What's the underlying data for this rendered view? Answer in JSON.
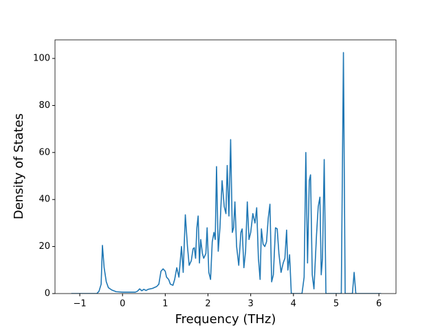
{
  "chart_data": {
    "type": "line",
    "xlabel": "Frequency (THz)",
    "ylabel": "Density of States",
    "xlim": [
      -1.58,
      6.4
    ],
    "ylim": [
      0,
      107.9
    ],
    "xticks": [
      {
        "value": -1,
        "label": "−1"
      },
      0,
      1,
      2,
      3,
      4,
      5,
      6
    ],
    "yticks": [
      0,
      20,
      40,
      60,
      80,
      100
    ],
    "x": [
      -1.2,
      -0.6,
      -0.55,
      -0.5,
      -0.47,
      -0.43,
      -0.38,
      -0.33,
      -0.25,
      -0.15,
      0,
      0.3,
      0.35,
      0.4,
      0.45,
      0.5,
      0.55,
      0.6,
      0.7,
      0.8,
      0.85,
      0.9,
      0.95,
      1.0,
      1.03,
      1.08,
      1.12,
      1.18,
      1.22,
      1.27,
      1.32,
      1.38,
      1.42,
      1.47,
      1.52,
      1.56,
      1.61,
      1.65,
      1.68,
      1.71,
      1.74,
      1.77,
      1.8,
      1.83,
      1.87,
      1.9,
      1.95,
      1.98,
      2.02,
      2.06,
      2.1,
      2.14,
      2.17,
      2.2,
      2.24,
      2.28,
      2.33,
      2.38,
      2.42,
      2.45,
      2.49,
      2.53,
      2.57,
      2.6,
      2.63,
      2.67,
      2.72,
      2.77,
      2.8,
      2.84,
      2.88,
      2.92,
      2.96,
      3.0,
      3.05,
      3.1,
      3.14,
      3.18,
      3.22,
      3.25,
      3.29,
      3.33,
      3.37,
      3.41,
      3.45,
      3.49,
      3.53,
      3.58,
      3.62,
      3.66,
      3.71,
      3.76,
      3.8,
      3.84,
      3.87,
      3.91,
      3.95,
      4.2,
      4.25,
      4.29,
      4.33,
      4.37,
      4.4,
      4.44,
      4.48,
      4.54,
      4.58,
      4.62,
      4.65,
      4.68,
      4.72,
      4.76,
      5.12,
      5.17,
      5.21,
      5.38,
      5.42,
      5.46,
      6.05
    ],
    "series": [
      {
        "color": "#1f77b4",
        "values": [
          0,
          0,
          1,
          4,
          20.5,
          11,
          5,
          2.5,
          1.5,
          0.8,
          0.6,
          0.6,
          1,
          2,
          1.2,
          1.8,
          1.3,
          1.8,
          2.2,
          3,
          4,
          9.5,
          10.5,
          9.5,
          7,
          6,
          4,
          3.5,
          6,
          11,
          7,
          20,
          9,
          33.5,
          20,
          12,
          14,
          19,
          19.5,
          15,
          28,
          33,
          13,
          23,
          17,
          15,
          17,
          28,
          9,
          6,
          22,
          26,
          23,
          54,
          18,
          28,
          48,
          37,
          34,
          54.5,
          33,
          65.5,
          26,
          28,
          39,
          20,
          12,
          26,
          27.5,
          11,
          18,
          39,
          23,
          26,
          34,
          30,
          36.5,
          15,
          6,
          27.5,
          21,
          20,
          22,
          32,
          38,
          5,
          8,
          28,
          27.5,
          17,
          9,
          13,
          15,
          27,
          10,
          16.5,
          0,
          0,
          7,
          60,
          13,
          48,
          50.5,
          8,
          2,
          25,
          37,
          41,
          8,
          15,
          57,
          0,
          0,
          102.5,
          0,
          0,
          9,
          0,
          0
        ]
      }
    ]
  }
}
